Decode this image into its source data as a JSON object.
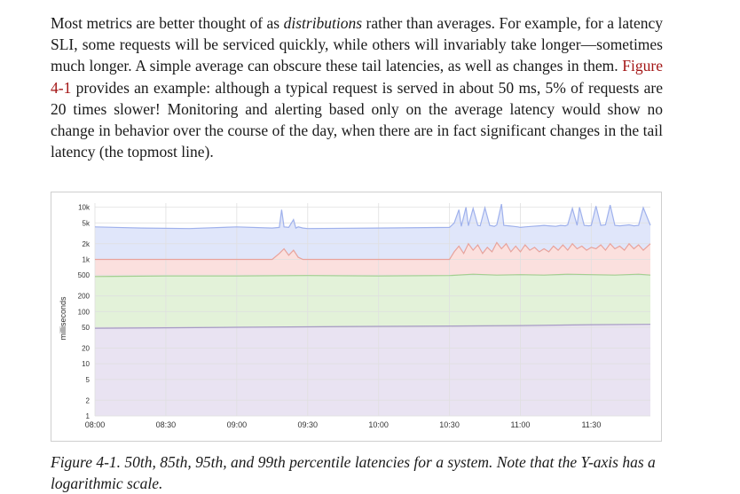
{
  "body_text": {
    "p1": "Most metrics are better thought of as ",
    "p_em": "distributions",
    "p2": " rather than averages. For example, for a latency SLI, some requests will be serviced quickly, while others will invariably take longer—sometimes much longer. A simple average can obscure these tail laten­cies, as well as changes in them. ",
    "fig_ref": "Figure 4-1",
    "p3": " provides an example: although a typical request is served in about 50 ms, 5% of requests are 20 times slower! Monitoring and alerting based only on the average latency would show no change in behavior over the course of the day, when there are in fact significant changes in the tail latency (the topmost line)."
  },
  "caption": "Figure 4-1. 50th, 85th, 95th, and 99th percentile latencies for a system. Note that the Y-axis has a logarithmic scale.",
  "colors": {
    "link": "#a31515",
    "band_p99": "#e0e6fa",
    "band_p95": "#fbe0de",
    "band_p85": "#e3f2d9",
    "band_p50": "#e9e3f2",
    "line_p99": "#9fb1ec",
    "line_p95": "#e8a39c",
    "line_p85": "#a3cf8f",
    "line_p50": "#a69ac4",
    "grid": "#e0e0e0",
    "axis_text": "#333333"
  },
  "chart_data": {
    "type": "area",
    "title": "",
    "xlabel": "",
    "ylabel": "milliseconds",
    "y_scale": "log",
    "ylim": [
      1,
      12000
    ],
    "y_ticks": [
      1,
      2,
      5,
      10,
      20,
      50,
      100,
      200,
      500,
      1000,
      2000,
      5000,
      10000
    ],
    "y_tick_labels": [
      "1",
      "2",
      "5",
      "10",
      "20",
      "50",
      "100",
      "200",
      "500",
      "1k",
      "2k",
      "5k",
      "10k"
    ],
    "x_tick_labels": [
      "08:00",
      "08:30",
      "09:00",
      "09:30",
      "10:00",
      "10:30",
      "11:00",
      "11:30"
    ],
    "x_range": [
      "08:00",
      "11:55"
    ],
    "grid": true,
    "series": [
      {
        "key": "p99",
        "x": [
          "08:00",
          "08:20",
          "08:40",
          "09:00",
          "09:15",
          "09:18",
          "09:19",
          "09:20",
          "09:22",
          "09:24",
          "09:25",
          "09:26",
          "09:28",
          "09:30",
          "10:00",
          "10:30",
          "10:32",
          "10:34",
          "10:35",
          "10:37",
          "10:38",
          "10:40",
          "10:42",
          "10:43",
          "10:45",
          "10:47",
          "10:49",
          "10:50",
          "10:52",
          "10:53",
          "10:55",
          "10:57",
          "10:59",
          "11:00",
          "11:02",
          "11:05",
          "11:08",
          "11:10",
          "11:12",
          "11:15",
          "11:17",
          "11:19",
          "11:20",
          "11:22",
          "11:24",
          "11:25",
          "11:27",
          "11:29",
          "11:30",
          "11:32",
          "11:34",
          "11:36",
          "11:38",
          "11:40",
          "11:42",
          "11:44",
          "11:46",
          "11:48",
          "11:50",
          "11:52",
          "11:55"
        ],
        "y": [
          4200,
          4000,
          3900,
          4200,
          4000,
          4100,
          9000,
          4200,
          4100,
          5800,
          4000,
          4200,
          4000,
          3900,
          4000,
          4100,
          5000,
          9000,
          4300,
          10000,
          4400,
          9500,
          4500,
          4400,
          9800,
          4500,
          4300,
          4600,
          11500,
          4500,
          4400,
          4300,
          4200,
          4100,
          4200,
          4300,
          4400,
          4500,
          4400,
          4300,
          4500,
          4400,
          4600,
          9500,
          4500,
          10000,
          4500,
          4400,
          4500,
          10500,
          4500,
          4600,
          11000,
          4500,
          4400,
          4500,
          4600,
          4400,
          4500,
          9800,
          4500
        ]
      },
      {
        "key": "p95",
        "x": [
          "08:00",
          "08:30",
          "09:00",
          "09:15",
          "09:18",
          "09:20",
          "09:22",
          "09:24",
          "09:26",
          "09:28",
          "09:30",
          "10:00",
          "10:30",
          "10:32",
          "10:34",
          "10:36",
          "10:38",
          "10:40",
          "10:42",
          "10:44",
          "10:46",
          "10:48",
          "10:50",
          "10:52",
          "10:54",
          "10:56",
          "10:58",
          "11:00",
          "11:02",
          "11:04",
          "11:06",
          "11:08",
          "11:10",
          "11:12",
          "11:14",
          "11:16",
          "11:18",
          "11:20",
          "11:22",
          "11:24",
          "11:26",
          "11:28",
          "11:30",
          "11:32",
          "11:34",
          "11:36",
          "11:38",
          "11:40",
          "11:42",
          "11:44",
          "11:46",
          "11:48",
          "11:50",
          "11:52",
          "11:55"
        ],
        "y": [
          1000,
          1000,
          1000,
          1000,
          1300,
          1600,
          1200,
          1500,
          1100,
          1000,
          1000,
          1000,
          1000,
          1400,
          1800,
          1300,
          2000,
          1500,
          1900,
          1300,
          1700,
          1400,
          2100,
          1600,
          2000,
          1400,
          1800,
          1400,
          1900,
          1500,
          1700,
          1400,
          1600,
          1400,
          1800,
          1500,
          1900,
          1500,
          2000,
          1600,
          1800,
          1500,
          1700,
          1600,
          1900,
          1500,
          2000,
          1600,
          1800,
          1500,
          2000,
          1600,
          1900,
          1500,
          2000
        ]
      },
      {
        "key": "p85",
        "x": [
          "08:00",
          "08:30",
          "09:00",
          "09:30",
          "10:00",
          "10:30",
          "10:40",
          "10:50",
          "11:00",
          "11:10",
          "11:20",
          "11:30",
          "11:40",
          "11:50",
          "11:55"
        ],
        "y": [
          470,
          480,
          480,
          490,
          480,
          490,
          520,
          500,
          510,
          500,
          520,
          510,
          500,
          520,
          500
        ]
      },
      {
        "key": "p50",
        "x": [
          "08:00",
          "08:30",
          "09:00",
          "09:30",
          "10:00",
          "10:30",
          "11:00",
          "11:30",
          "11:55"
        ],
        "y": [
          48,
          49,
          50,
          51,
          52,
          53,
          54,
          56,
          57
        ]
      }
    ]
  }
}
